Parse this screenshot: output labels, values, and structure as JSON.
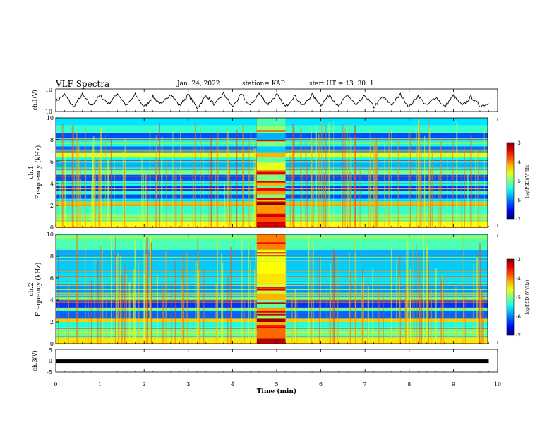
{
  "header": {
    "title": "VLF Spectra",
    "date": "Jan. 24, 2022",
    "station": "station= KAP",
    "start": "start  UT =   13: 30: 1"
  },
  "chart_data": [
    {
      "type": "line",
      "panel": "ch1",
      "ylabel": "ch.1(V)",
      "ylim": [
        -10,
        10
      ],
      "ytick_labels": [
        "10",
        "-10"
      ],
      "xlim": [
        0,
        10
      ],
      "x": [
        0.0,
        0.2,
        0.4,
        0.6,
        0.8,
        1.0,
        1.2,
        1.4,
        1.6,
        1.8,
        2.0,
        2.2,
        2.4,
        2.6,
        2.8,
        3.0,
        3.2,
        3.4,
        3.6,
        3.8,
        4.0,
        4.2,
        4.4,
        4.6,
        4.8,
        5.0,
        5.2,
        5.4,
        5.6,
        5.8,
        6.0,
        6.2,
        6.4,
        6.6,
        6.8,
        7.0,
        7.2,
        7.4,
        7.6,
        7.8,
        8.0,
        8.2,
        8.4,
        8.6,
        8.8,
        9.0,
        9.2,
        9.4,
        9.6,
        9.8
      ],
      "values": [
        -1,
        5,
        -6,
        5,
        -5,
        4,
        -3,
        6,
        -5,
        5,
        -6,
        3,
        -4,
        6,
        -5,
        5,
        -7,
        4,
        -4,
        6,
        -6,
        5,
        -5,
        6,
        -4,
        5,
        -6,
        4,
        -5,
        5,
        -4,
        5,
        -6,
        5,
        -5,
        4,
        -6,
        3,
        -4,
        5,
        -6,
        4,
        -5,
        3,
        -6,
        4,
        -5,
        3,
        -5,
        -3
      ]
    },
    {
      "type": "heatmap",
      "panel": "ch2-spectrogram",
      "ylabel": "ch.1\nFrequency (kHz)",
      "ylim": [
        0,
        10
      ],
      "ytick_labels": [
        "0",
        "2",
        "4",
        "6",
        "8",
        "10"
      ],
      "xlim": [
        0,
        10
      ],
      "colorbar": {
        "label": "log(PSD)(V²/Hz)",
        "range": [
          -7,
          -3
        ],
        "tick_labels": [
          "-3",
          "-4",
          "-5",
          "-6",
          "-7"
        ]
      },
      "bands_khz": [
        {
          "from": 0,
          "to": 0.5,
          "level": -4.5
        },
        {
          "from": 0.5,
          "to": 1.2,
          "level": -5.0
        },
        {
          "from": 1.2,
          "to": 2.0,
          "level": -5.3
        },
        {
          "from": 2.0,
          "to": 2.3,
          "level": -4.2
        },
        {
          "from": 2.3,
          "to": 2.6,
          "level": -5.5
        },
        {
          "from": 2.6,
          "to": 3.0,
          "level": -6.2
        },
        {
          "from": 3.0,
          "to": 3.3,
          "level": -5.3
        },
        {
          "from": 3.3,
          "to": 3.8,
          "level": -6.3
        },
        {
          "from": 3.8,
          "to": 4.2,
          "level": -5.4
        },
        {
          "from": 4.2,
          "to": 4.8,
          "level": -6.2
        },
        {
          "from": 4.8,
          "to": 5.2,
          "level": -5.0
        },
        {
          "from": 5.2,
          "to": 5.9,
          "level": -5.8
        },
        {
          "from": 5.9,
          "to": 6.4,
          "level": -5.5
        },
        {
          "from": 6.4,
          "to": 6.8,
          "level": -4.6
        },
        {
          "from": 6.8,
          "to": 7.4,
          "level": -6.1
        },
        {
          "from": 7.4,
          "to": 7.9,
          "level": -5.4
        },
        {
          "from": 7.9,
          "to": 8.6,
          "level": -6.2
        },
        {
          "from": 8.6,
          "to": 9.3,
          "level": -5.3
        },
        {
          "from": 9.3,
          "to": 10,
          "level": -5.6
        }
      ],
      "burst_min": [
        4.55,
        5.2
      ]
    },
    {
      "type": "heatmap",
      "panel": "ch2-spectrogram",
      "ylabel": "ch.2\nFrequency (kHz)",
      "ylim": [
        0,
        10
      ],
      "ytick_labels": [
        "0",
        "2",
        "4",
        "6",
        "8",
        "10"
      ],
      "xlim": [
        0,
        10
      ],
      "colorbar": {
        "label": "log(PSD)(V²/Hz)",
        "range": [
          -7,
          -3
        ],
        "tick_labels": [
          "-3",
          "-4",
          "-5",
          "-6",
          "-7"
        ]
      },
      "bands_khz": [
        {
          "from": 0,
          "to": 0.5,
          "level": -4.4
        },
        {
          "from": 0.5,
          "to": 1.5,
          "level": -5.1
        },
        {
          "from": 1.5,
          "to": 2.0,
          "level": -5.4
        },
        {
          "from": 2.0,
          "to": 2.3,
          "level": -4.3
        },
        {
          "from": 2.3,
          "to": 3.0,
          "level": -6.1
        },
        {
          "from": 3.0,
          "to": 3.3,
          "level": -5.3
        },
        {
          "from": 3.3,
          "to": 4.0,
          "level": -6.3
        },
        {
          "from": 4.0,
          "to": 4.6,
          "level": -5.4
        },
        {
          "from": 4.6,
          "to": 5.5,
          "level": -5.9
        },
        {
          "from": 5.5,
          "to": 6.4,
          "level": -5.6
        },
        {
          "from": 6.4,
          "to": 7.5,
          "level": -5.7
        },
        {
          "from": 7.5,
          "to": 8.6,
          "level": -5.8
        },
        {
          "from": 8.6,
          "to": 10,
          "level": -5.2
        }
      ],
      "burst_min": [
        4.55,
        5.2
      ]
    },
    {
      "type": "line",
      "panel": "ch3",
      "ylabel": "ch.3(V)",
      "ylim": [
        -5,
        5
      ],
      "ytick_labels": [
        "5",
        "0",
        "-5"
      ],
      "xlim": [
        0,
        10
      ],
      "x": [
        0,
        9.8
      ],
      "values": [
        -0.2,
        -0.2
      ]
    }
  ],
  "xaxis": {
    "label": "Time (min)",
    "ticks": [
      0,
      1,
      2,
      3,
      4,
      5,
      6,
      7,
      8,
      9,
      10
    ],
    "tick_labels": [
      "0",
      "1",
      "2",
      "3",
      "4",
      "5",
      "6",
      "7",
      "8",
      "9",
      "10"
    ]
  },
  "colors": {
    "colormap": [
      "#00007f",
      "#0000ff",
      "#007fff",
      "#00ffff",
      "#00ff7f",
      "#7fff00",
      "#ffff00",
      "#ff7f00",
      "#ff0000",
      "#ffffff"
    ],
    "trace": "#000000"
  }
}
